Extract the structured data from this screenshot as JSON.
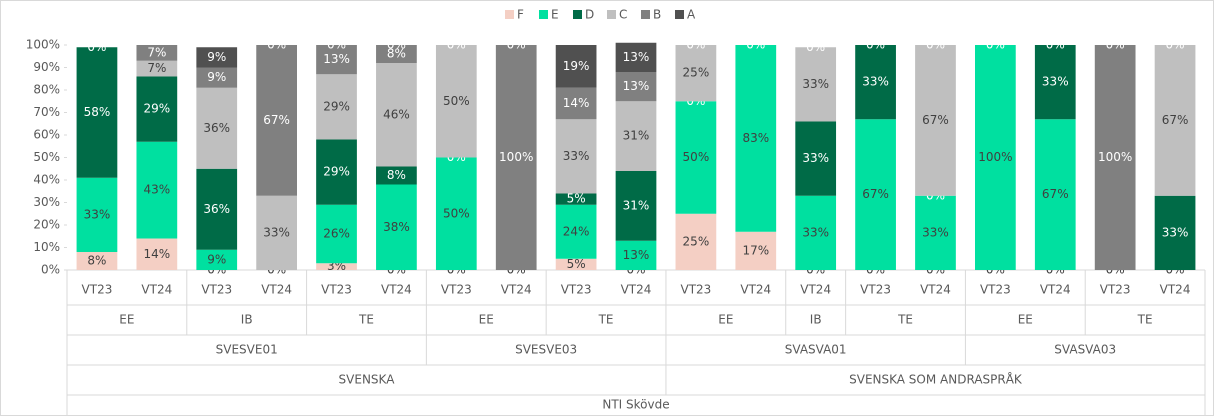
{
  "chart_data": {
    "type": "stacked_bar_100",
    "hierarchy": {
      "name": "NTI Skövde",
      "children": [
        {
          "name": "SVENSKA",
          "children": [
            {
              "name": "SVESVE01",
              "children": [
                {
                  "name": "EE",
                  "children": [
                    "VT23",
                    "VT24"
                  ]
                },
                {
                  "name": "IB",
                  "children": [
                    "VT23",
                    "VT24"
                  ]
                },
                {
                  "name": "TE",
                  "children": [
                    "VT23",
                    "VT24"
                  ]
                }
              ]
            },
            {
              "name": "SVESVE03",
              "children": [
                {
                  "name": "EE",
                  "children": [
                    "VT23",
                    "VT24"
                  ]
                },
                {
                  "name": "TE",
                  "children": [
                    "VT23",
                    "VT24"
                  ]
                }
              ]
            }
          ]
        },
        {
          "name": "SVENSKA SOM ANDRASPRÅK",
          "children": [
            {
              "name": "SVASVA01",
              "children": [
                {
                  "name": "EE",
                  "children": [
                    "VT23",
                    "VT24"
                  ]
                },
                {
                  "name": "IB",
                  "children": [
                    "VT24"
                  ]
                },
                {
                  "name": "TE",
                  "children": [
                    "VT23",
                    "VT24"
                  ]
                }
              ]
            },
            {
              "name": "SVASVA03",
              "children": [
                {
                  "name": "EE",
                  "children": [
                    "VT23",
                    "VT24"
                  ]
                },
                {
                  "name": "TE",
                  "children": [
                    "VT23",
                    "VT24"
                  ]
                }
              ]
            }
          ]
        }
      ]
    },
    "series": [
      {
        "name": "F",
        "color": "#f4cfc4",
        "values": [
          8,
          14,
          0,
          0,
          3,
          0,
          0,
          0,
          5,
          0,
          25,
          17,
          0,
          0,
          0,
          0,
          0,
          0,
          0
        ],
        "value_labels": [
          "8%",
          "14%",
          "0%",
          "0%",
          "3%",
          "0%",
          "0%",
          "0%",
          "5%",
          "0%",
          "25%",
          "17%",
          "0%",
          "0%",
          "0%",
          "0%",
          "0%",
          "0%",
          "0%"
        ]
      },
      {
        "name": "E",
        "color": "#00e0a0",
        "values": [
          33,
          43,
          9,
          0,
          26,
          38,
          50,
          0,
          24,
          13,
          50,
          83,
          33,
          67,
          33,
          100,
          67,
          0,
          0
        ],
        "value_labels": [
          "33%",
          "43%",
          "9%",
          null,
          "26%",
          "38%",
          "50%",
          null,
          "24%",
          "13%",
          "50%",
          "83%",
          "33%",
          "67%",
          "33%",
          "100%",
          "67%",
          null,
          null
        ]
      },
      {
        "name": "D",
        "color": "#006b47",
        "values": [
          58,
          29,
          36,
          0,
          29,
          8,
          0,
          0,
          5,
          31,
          0,
          0,
          33,
          33,
          0,
          0,
          33,
          0,
          33
        ],
        "value_labels": [
          "58%",
          "29%",
          "36%",
          null,
          "29%",
          "8%",
          "0%",
          null,
          "5%",
          "31%",
          "0%",
          null,
          "33%",
          "33%",
          "0%",
          null,
          "33%",
          null,
          "33%"
        ]
      },
      {
        "name": "C",
        "color": "#bfbfbf",
        "values": [
          0,
          7,
          36,
          33,
          29,
          46,
          50,
          0,
          33,
          31,
          25,
          0,
          33,
          0,
          67,
          0,
          0,
          0,
          67
        ],
        "value_labels": [
          null,
          "7%",
          "36%",
          "33%",
          "29%",
          "46%",
          "50%",
          null,
          "33%",
          "31%",
          "25%",
          null,
          "33%",
          null,
          "67%",
          null,
          null,
          null,
          "67%"
        ]
      },
      {
        "name": "B",
        "color": "#808080",
        "values": [
          0,
          7,
          9,
          67,
          13,
          8,
          0,
          100,
          14,
          13,
          0,
          0,
          0,
          0,
          0,
          0,
          0,
          100,
          0
        ],
        "value_labels": [
          null,
          "7%",
          "9%",
          "67%",
          "13%",
          "8%",
          null,
          "100%",
          "14%",
          "13%",
          null,
          null,
          null,
          null,
          null,
          null,
          null,
          "100%",
          null
        ]
      },
      {
        "name": "A",
        "color": "#505050",
        "values": [
          0,
          0,
          9,
          0,
          0,
          0,
          0,
          0,
          19,
          13,
          0,
          0,
          0,
          0,
          0,
          0,
          0,
          0,
          0
        ],
        "value_labels": [
          "0%",
          null,
          "9%",
          "0%",
          "0%",
          "0%",
          "0%",
          "0%",
          "19%",
          "13%",
          "0%",
          "0%",
          "0%",
          "0%",
          "0%",
          "0%",
          "0%",
          "0%",
          "0%"
        ]
      }
    ],
    "ylim": [
      0,
      100
    ],
    "yticks": [
      {
        "value": 0,
        "label": "0%"
      },
      {
        "value": 10,
        "label": "10%"
      },
      {
        "value": 20,
        "label": "20%"
      },
      {
        "value": 30,
        "label": "30%"
      },
      {
        "value": 40,
        "label": "40%"
      },
      {
        "value": 50,
        "label": "50%"
      },
      {
        "value": 60,
        "label": "60%"
      },
      {
        "value": 70,
        "label": "70%"
      },
      {
        "value": 80,
        "label": "80%"
      },
      {
        "value": 90,
        "label": "90%"
      },
      {
        "value": 100,
        "label": "100%"
      }
    ],
    "legend": "top"
  }
}
